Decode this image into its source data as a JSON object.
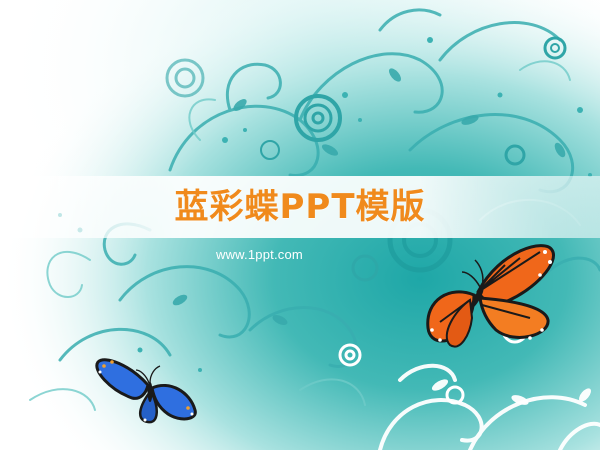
{
  "slide": {
    "title": "蓝彩蝶PPT模版",
    "url": "www.1ppt.com"
  },
  "colors": {
    "accent_title": "#f08a1c",
    "teal_dark": "#2a9e9e",
    "teal_mid": "#49b8b5",
    "teal_light": "#8fd6d4",
    "butterfly_orange": "#f0671a",
    "butterfly_blue": "#2f6fe0"
  },
  "icons": {
    "orange_butterfly": "orange-butterfly-icon",
    "blue_butterfly": "blue-butterfly-icon"
  }
}
